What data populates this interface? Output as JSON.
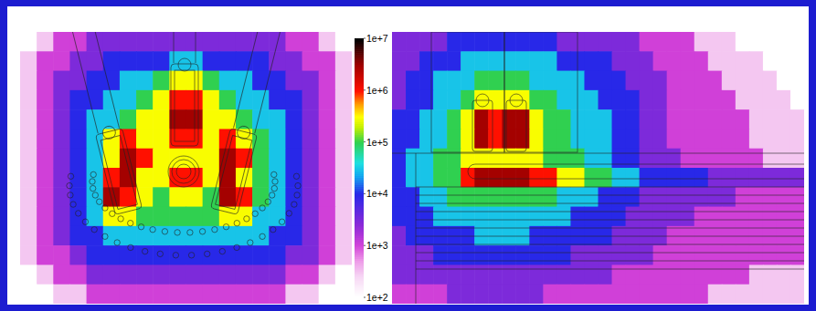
{
  "chart_data": {
    "type": "heatmap",
    "log": true,
    "tick_labels": false,
    "colorbar_range": [
      100,
      10000000
    ],
    "colorbar_ticks": [
      {
        "value": 10000000,
        "label": "1e+7"
      },
      {
        "value": 1000000,
        "label": "1e+6"
      },
      {
        "value": 100000,
        "label": "1e+5"
      },
      {
        "value": 10000,
        "label": "1e+4"
      },
      {
        "value": 1000,
        "label": "1e+3"
      },
      {
        "value": 100,
        "label": "1e+2"
      }
    ],
    "panels": [
      {
        "cells": [
          [
            100.0,
            300.0,
            1000.0,
            1000.0,
            3000.0,
            3000.0,
            3000.0,
            3000.0,
            3000.0,
            3000.0,
            3000.0,
            3000.0,
            3000.0,
            3000.0,
            3000.0,
            3000.0,
            1000.0,
            1000.0,
            300.0,
            100.0
          ],
          [
            300.0,
            1000.0,
            1000.0,
            3000.0,
            3000.0,
            10000.0,
            10000.0,
            10000.0,
            10000.0,
            30000.0,
            30000.0,
            10000.0,
            10000.0,
            10000.0,
            10000.0,
            3000.0,
            3000.0,
            1000.0,
            1000.0,
            300.0
          ],
          [
            300.0,
            1000.0,
            3000.0,
            3000.0,
            10000.0,
            10000.0,
            30000.0,
            30000.0,
            100000.0,
            300000.0,
            300000.0,
            100000.0,
            30000.0,
            30000.0,
            10000.0,
            10000.0,
            3000.0,
            3000.0,
            1000.0,
            300.0
          ],
          [
            300.0,
            1000.0,
            3000.0,
            10000.0,
            10000.0,
            30000.0,
            30000.0,
            100000.0,
            300000.0,
            1000000.0,
            1000000.0,
            300000.0,
            100000.0,
            30000.0,
            30000.0,
            10000.0,
            10000.0,
            3000.0,
            1000.0,
            300.0
          ],
          [
            300.0,
            1000.0,
            3000.0,
            10000.0,
            30000.0,
            30000.0,
            100000.0,
            300000.0,
            300000.0,
            3000000.0,
            3000000.0,
            300000.0,
            300000.0,
            100000.0,
            30000.0,
            30000.0,
            10000.0,
            3000.0,
            1000.0,
            300.0
          ],
          [
            300.0,
            1000.0,
            3000.0,
            10000.0,
            30000.0,
            300000.0,
            1000000.0,
            300000.0,
            300000.0,
            1000000.0,
            1000000.0,
            300000.0,
            1000000.0,
            300000.0,
            100000.0,
            30000.0,
            10000.0,
            3000.0,
            1000.0,
            300.0
          ],
          [
            300.0,
            1000.0,
            3000.0,
            10000.0,
            30000.0,
            300000.0,
            3000000.0,
            1000000.0,
            300000.0,
            300000.0,
            300000.0,
            300000.0,
            3000000.0,
            1000000.0,
            100000.0,
            30000.0,
            10000.0,
            3000.0,
            1000.0,
            300.0
          ],
          [
            300.0,
            1000.0,
            3000.0,
            10000.0,
            30000.0,
            1000000.0,
            3000000.0,
            300000.0,
            300000.0,
            1000000.0,
            1000000.0,
            300000.0,
            3000000.0,
            300000.0,
            100000.0,
            30000.0,
            10000.0,
            3000.0,
            1000.0,
            300.0
          ],
          [
            300.0,
            1000.0,
            3000.0,
            10000.0,
            30000.0,
            3000000.0,
            1000000.0,
            300000.0,
            100000.0,
            300000.0,
            300000.0,
            100000.0,
            3000000.0,
            1000000.0,
            100000.0,
            30000.0,
            10000.0,
            3000.0,
            1000.0,
            300.0
          ],
          [
            300.0,
            1000.0,
            3000.0,
            10000.0,
            30000.0,
            300000.0,
            300000.0,
            100000.0,
            100000.0,
            100000.0,
            100000.0,
            100000.0,
            300000.0,
            300000.0,
            30000.0,
            30000.0,
            10000.0,
            3000.0,
            1000.0,
            300.0
          ],
          [
            300.0,
            1000.0,
            3000.0,
            10000.0,
            10000.0,
            30000.0,
            30000.0,
            30000.0,
            30000.0,
            30000.0,
            30000.0,
            30000.0,
            30000.0,
            30000.0,
            30000.0,
            10000.0,
            10000.0,
            3000.0,
            1000.0,
            300.0
          ],
          [
            300.0,
            1000.0,
            1000.0,
            3000.0,
            10000.0,
            10000.0,
            10000.0,
            10000.0,
            10000.0,
            10000.0,
            10000.0,
            10000.0,
            10000.0,
            10000.0,
            10000.0,
            10000.0,
            3000.0,
            3000.0,
            1000.0,
            300.0
          ],
          [
            100.0,
            300.0,
            1000.0,
            1000.0,
            3000.0,
            3000.0,
            3000.0,
            3000.0,
            3000.0,
            3000.0,
            3000.0,
            3000.0,
            3000.0,
            3000.0,
            3000.0,
            3000.0,
            1000.0,
            1000.0,
            300.0,
            100.0
          ],
          [
            100.0,
            100.0,
            300.0,
            300.0,
            1000.0,
            1000.0,
            1000.0,
            1000.0,
            1000.0,
            1000.0,
            1000.0,
            1000.0,
            1000.0,
            1000.0,
            1000.0,
            1000.0,
            300.0,
            300.0,
            100.0,
            100.0
          ]
        ]
      },
      {
        "cells": [
          [
            3000.0,
            3000.0,
            3000.0,
            3000.0,
            10000.0,
            10000.0,
            10000.0,
            10000.0,
            10000.0,
            10000.0,
            10000.0,
            10000.0,
            3000.0,
            3000.0,
            3000.0,
            3000.0,
            3000.0,
            3000.0,
            1000.0,
            1000.0,
            1000.0,
            1000.0,
            300.0,
            300.0,
            300.0,
            100.0,
            100.0,
            100.0,
            100.0,
            100.0
          ],
          [
            3000.0,
            3000.0,
            10000.0,
            10000.0,
            10000.0,
            30000.0,
            30000.0,
            30000.0,
            30000.0,
            30000.0,
            30000.0,
            30000.0,
            10000.0,
            10000.0,
            10000.0,
            10000.0,
            3000.0,
            3000.0,
            3000.0,
            1000.0,
            1000.0,
            1000.0,
            1000.0,
            300.0,
            300.0,
            300.0,
            300.0,
            100.0,
            100.0,
            100.0
          ],
          [
            3000.0,
            10000.0,
            10000.0,
            30000.0,
            30000.0,
            30000.0,
            100000.0,
            100000.0,
            100000.0,
            100000.0,
            30000.0,
            30000.0,
            30000.0,
            30000.0,
            10000.0,
            10000.0,
            10000.0,
            3000.0,
            3000.0,
            3000.0,
            1000.0,
            1000.0,
            1000.0,
            1000.0,
            300.0,
            300.0,
            300.0,
            300.0,
            100.0,
            100.0
          ],
          [
            3000.0,
            10000.0,
            10000.0,
            30000.0,
            30000.0,
            100000.0,
            300000.0,
            300000.0,
            300000.0,
            300000.0,
            100000.0,
            100000.0,
            30000.0,
            30000.0,
            30000.0,
            10000.0,
            10000.0,
            10000.0,
            3000.0,
            3000.0,
            1000.0,
            1000.0,
            1000.0,
            1000.0,
            1000.0,
            300.0,
            300.0,
            300.0,
            300.0,
            100.0
          ],
          [
            10000.0,
            10000.0,
            30000.0,
            30000.0,
            100000.0,
            300000.0,
            3000000.0,
            1000000.0,
            3000000.0,
            3000000.0,
            300000.0,
            100000.0,
            100000.0,
            30000.0,
            30000.0,
            30000.0,
            10000.0,
            10000.0,
            3000.0,
            3000.0,
            1000.0,
            1000.0,
            1000.0,
            1000.0,
            1000.0,
            1000.0,
            300.0,
            300.0,
            300.0,
            300.0
          ],
          [
            10000.0,
            10000.0,
            30000.0,
            30000.0,
            100000.0,
            300000.0,
            3000000.0,
            1000000.0,
            3000000.0,
            3000000.0,
            300000.0,
            100000.0,
            100000.0,
            30000.0,
            30000.0,
            30000.0,
            10000.0,
            10000.0,
            3000.0,
            3000.0,
            1000.0,
            1000.0,
            1000.0,
            1000.0,
            1000.0,
            1000.0,
            300.0,
            300.0,
            300.0,
            300.0
          ],
          [
            10000.0,
            30000.0,
            30000.0,
            100000.0,
            100000.0,
            300000.0,
            300000.0,
            300000.0,
            300000.0,
            300000.0,
            300000.0,
            100000.0,
            100000.0,
            100000.0,
            30000.0,
            30000.0,
            10000.0,
            10000.0,
            3000.0,
            3000.0,
            3000.0,
            1000.0,
            1000.0,
            1000.0,
            1000.0,
            1000.0,
            1000.0,
            300.0,
            300.0,
            300.0
          ],
          [
            10000.0,
            30000.0,
            30000.0,
            100000.0,
            100000.0,
            1000000.0,
            3000000.0,
            3000000.0,
            3000000.0,
            3000000.0,
            1000000.0,
            1000000.0,
            300000.0,
            300000.0,
            100000.0,
            100000.0,
            30000.0,
            30000.0,
            10000.0,
            10000.0,
            10000.0,
            10000.0,
            10000.0,
            3000.0,
            3000.0,
            3000.0,
            3000.0,
            3000.0,
            3000.0,
            3000.0
          ],
          [
            10000.0,
            10000.0,
            30000.0,
            30000.0,
            100000.0,
            100000.0,
            100000.0,
            100000.0,
            100000.0,
            100000.0,
            100000.0,
            100000.0,
            30000.0,
            30000.0,
            30000.0,
            10000.0,
            10000.0,
            10000.0,
            3000.0,
            3000.0,
            3000.0,
            3000.0,
            3000.0,
            3000.0,
            3000.0,
            1000.0,
            1000.0,
            1000.0,
            1000.0,
            1000.0
          ],
          [
            10000.0,
            10000.0,
            10000.0,
            30000.0,
            30000.0,
            30000.0,
            30000.0,
            30000.0,
            30000.0,
            30000.0,
            30000.0,
            30000.0,
            30000.0,
            10000.0,
            10000.0,
            10000.0,
            10000.0,
            3000.0,
            3000.0,
            3000.0,
            3000.0,
            3000.0,
            1000.0,
            1000.0,
            1000.0,
            1000.0,
            1000.0,
            1000.0,
            1000.0,
            1000.0
          ],
          [
            3000.0,
            10000.0,
            10000.0,
            10000.0,
            10000.0,
            10000.0,
            30000.0,
            30000.0,
            30000.0,
            30000.0,
            10000.0,
            10000.0,
            10000.0,
            10000.0,
            10000.0,
            10000.0,
            3000.0,
            3000.0,
            3000.0,
            3000.0,
            1000.0,
            1000.0,
            1000.0,
            1000.0,
            1000.0,
            1000.0,
            1000.0,
            1000.0,
            1000.0,
            1000.0
          ],
          [
            3000.0,
            3000.0,
            3000.0,
            10000.0,
            10000.0,
            10000.0,
            10000.0,
            10000.0,
            10000.0,
            10000.0,
            10000.0,
            10000.0,
            10000.0,
            3000.0,
            3000.0,
            3000.0,
            3000.0,
            3000.0,
            3000.0,
            1000.0,
            1000.0,
            1000.0,
            1000.0,
            1000.0,
            1000.0,
            1000.0,
            1000.0,
            1000.0,
            1000.0,
            1000.0
          ],
          [
            3000.0,
            3000.0,
            3000.0,
            3000.0,
            3000.0,
            3000.0,
            3000.0,
            3000.0,
            3000.0,
            3000.0,
            3000.0,
            3000.0,
            3000.0,
            3000.0,
            3000.0,
            3000.0,
            1000.0,
            1000.0,
            1000.0,
            1000.0,
            1000.0,
            1000.0,
            1000.0,
            1000.0,
            1000.0,
            1000.0,
            300.0,
            300.0,
            300.0,
            300.0
          ],
          [
            1000.0,
            1000.0,
            1000.0,
            1000.0,
            3000.0,
            3000.0,
            3000.0,
            3000.0,
            3000.0,
            3000.0,
            3000.0,
            1000.0,
            1000.0,
            1000.0,
            1000.0,
            1000.0,
            1000.0,
            1000.0,
            1000.0,
            1000.0,
            1000.0,
            1000.0,
            1000.0,
            300.0,
            300.0,
            300.0,
            300.0,
            300.0,
            300.0,
            300.0
          ]
        ]
      }
    ]
  }
}
